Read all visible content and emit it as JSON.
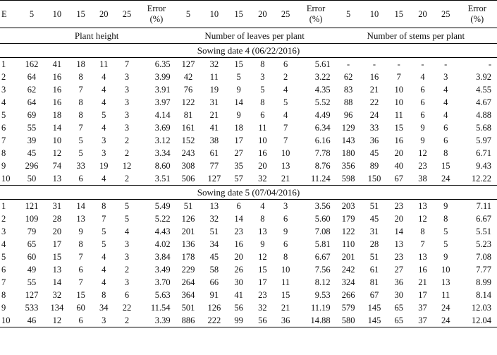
{
  "header": {
    "e": "E",
    "columns": [
      "5",
      "10",
      "15",
      "20",
      "25"
    ],
    "error_line1": "Error",
    "error_line2": "(%)"
  },
  "groups": {
    "plant_height": "Plant height",
    "leaves": "Number of leaves per plant",
    "stems": "Number of stems per plant"
  },
  "sections": [
    {
      "title": "Sowing date 4 (06/22/2016)",
      "rows": [
        [
          "1",
          "162",
          "41",
          "18",
          "11",
          "7",
          "6.35",
          "127",
          "32",
          "15",
          "8",
          "6",
          "5.61",
          "-",
          "-",
          "-",
          "-",
          "-",
          "-"
        ],
        [
          "2",
          "64",
          "16",
          "8",
          "4",
          "3",
          "3.99",
          "42",
          "11",
          "5",
          "3",
          "2",
          "3.22",
          "62",
          "16",
          "7",
          "4",
          "3",
          "3.92"
        ],
        [
          "3",
          "62",
          "16",
          "7",
          "4",
          "3",
          "3.91",
          "76",
          "19",
          "9",
          "5",
          "4",
          "4.35",
          "83",
          "21",
          "10",
          "6",
          "4",
          "4.55"
        ],
        [
          "4",
          "64",
          "16",
          "8",
          "4",
          "3",
          "3.97",
          "122",
          "31",
          "14",
          "8",
          "5",
          "5.52",
          "88",
          "22",
          "10",
          "6",
          "4",
          "4.67"
        ],
        [
          "5",
          "69",
          "18",
          "8",
          "5",
          "3",
          "4.14",
          "81",
          "21",
          "9",
          "6",
          "4",
          "4.49",
          "96",
          "24",
          "11",
          "6",
          "4",
          "4.88"
        ],
        [
          "6",
          "55",
          "14",
          "7",
          "4",
          "3",
          "3.69",
          "161",
          "41",
          "18",
          "11",
          "7",
          "6.34",
          "129",
          "33",
          "15",
          "9",
          "6",
          "5.68"
        ],
        [
          "7",
          "39",
          "10",
          "5",
          "3",
          "2",
          "3.12",
          "152",
          "38",
          "17",
          "10",
          "7",
          "6.16",
          "143",
          "36",
          "16",
          "9",
          "6",
          "5.97"
        ],
        [
          "8",
          "45",
          "12",
          "5",
          "3",
          "2",
          "3.34",
          "243",
          "61",
          "27",
          "16",
          "10",
          "7.78",
          "180",
          "45",
          "20",
          "12",
          "8",
          "6.71"
        ],
        [
          "9",
          "296",
          "74",
          "33",
          "19",
          "12",
          "8.60",
          "308",
          "77",
          "35",
          "20",
          "13",
          "8.76",
          "356",
          "89",
          "40",
          "23",
          "15",
          "9.43"
        ],
        [
          "10",
          "50",
          "13",
          "6",
          "4",
          "2",
          "3.51",
          "506",
          "127",
          "57",
          "32",
          "21",
          "11.24",
          "598",
          "150",
          "67",
          "38",
          "24",
          "12.22"
        ]
      ]
    },
    {
      "title": "Sowing date 5 (07/04/2016)",
      "rows": [
        [
          "1",
          "121",
          "31",
          "14",
          "8",
          "5",
          "5.49",
          "51",
          "13",
          "6",
          "4",
          "3",
          "3.56",
          "203",
          "51",
          "23",
          "13",
          "9",
          "7.11"
        ],
        [
          "2",
          "109",
          "28",
          "13",
          "7",
          "5",
          "5.22",
          "126",
          "32",
          "14",
          "8",
          "6",
          "5.60",
          "179",
          "45",
          "20",
          "12",
          "8",
          "6.67"
        ],
        [
          "3",
          "79",
          "20",
          "9",
          "5",
          "4",
          "4.43",
          "201",
          "51",
          "23",
          "13",
          "9",
          "7.08",
          "122",
          "31",
          "14",
          "8",
          "5",
          "5.51"
        ],
        [
          "4",
          "65",
          "17",
          "8",
          "5",
          "3",
          "4.02",
          "136",
          "34",
          "16",
          "9",
          "6",
          "5.81",
          "110",
          "28",
          "13",
          "7",
          "5",
          "5.23"
        ],
        [
          "5",
          "60",
          "15",
          "7",
          "4",
          "3",
          "3.84",
          "178",
          "45",
          "20",
          "12",
          "8",
          "6.67",
          "201",
          "51",
          "23",
          "13",
          "9",
          "7.08"
        ],
        [
          "6",
          "49",
          "13",
          "6",
          "4",
          "2",
          "3.49",
          "229",
          "58",
          "26",
          "15",
          "10",
          "7.56",
          "242",
          "61",
          "27",
          "16",
          "10",
          "7.77"
        ],
        [
          "7",
          "55",
          "14",
          "7",
          "4",
          "3",
          "3.70",
          "264",
          "66",
          "30",
          "17",
          "11",
          "8.12",
          "324",
          "81",
          "36",
          "21",
          "13",
          "8.99"
        ],
        [
          "8",
          "127",
          "32",
          "15",
          "8",
          "6",
          "5.63",
          "364",
          "91",
          "41",
          "23",
          "15",
          "9.53",
          "266",
          "67",
          "30",
          "17",
          "11",
          "8.14"
        ],
        [
          "9",
          "533",
          "134",
          "60",
          "34",
          "22",
          "11.54",
          "501",
          "126",
          "56",
          "32",
          "21",
          "11.19",
          "579",
          "145",
          "65",
          "37",
          "24",
          "12.03"
        ],
        [
          "10",
          "46",
          "12",
          "6",
          "3",
          "2",
          "3.39",
          "886",
          "222",
          "99",
          "56",
          "36",
          "14.88",
          "580",
          "145",
          "65",
          "37",
          "24",
          "12.04"
        ]
      ]
    }
  ]
}
